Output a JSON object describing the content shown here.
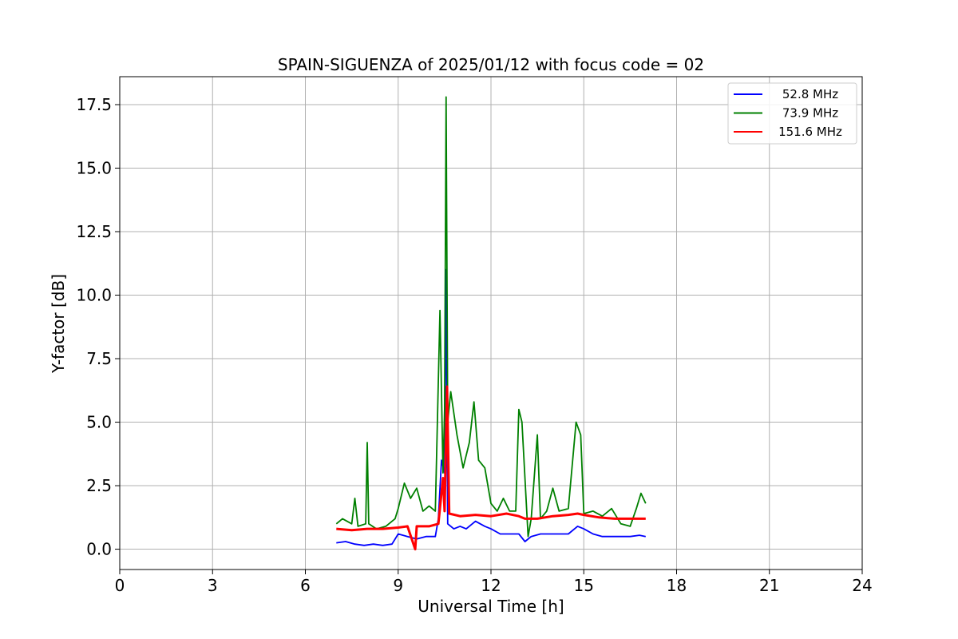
{
  "chart_data": {
    "type": "line",
    "title": "SPAIN-SIGUENZA of 2025/01/12 with focus code = 02",
    "xlabel": "Universal Time [h]",
    "ylabel": "Y-factor [dB]",
    "xlim": [
      0,
      24
    ],
    "ylim": [
      -0.8,
      18.6
    ],
    "xticks": [
      "0",
      "3",
      "6",
      "9",
      "12",
      "15",
      "18",
      "21",
      "24"
    ],
    "yticks": [
      "0.0",
      "2.5",
      "5.0",
      "7.5",
      "10.0",
      "12.5",
      "15.0",
      "17.5"
    ],
    "grid": true,
    "legend_position": "top-right",
    "series": [
      {
        "name": "52.8 MHz",
        "color": "#0000ff",
        "points": [
          [
            7.0,
            0.25
          ],
          [
            7.3,
            0.3
          ],
          [
            7.6,
            0.2
          ],
          [
            7.9,
            0.15
          ],
          [
            8.2,
            0.2
          ],
          [
            8.5,
            0.15
          ],
          [
            8.8,
            0.2
          ],
          [
            9.0,
            0.6
          ],
          [
            9.3,
            0.5
          ],
          [
            9.6,
            0.4
          ],
          [
            9.9,
            0.5
          ],
          [
            10.2,
            0.5
          ],
          [
            10.3,
            1.2
          ],
          [
            10.4,
            3.5
          ],
          [
            10.5,
            3.0
          ],
          [
            10.55,
            11.0
          ],
          [
            10.6,
            1.0
          ],
          [
            10.8,
            0.8
          ],
          [
            11.0,
            0.9
          ],
          [
            11.2,
            0.8
          ],
          [
            11.5,
            1.1
          ],
          [
            11.8,
            0.9
          ],
          [
            12.0,
            0.8
          ],
          [
            12.3,
            0.6
          ],
          [
            12.6,
            0.6
          ],
          [
            12.9,
            0.6
          ],
          [
            13.1,
            0.3
          ],
          [
            13.3,
            0.5
          ],
          [
            13.6,
            0.6
          ],
          [
            13.9,
            0.6
          ],
          [
            14.2,
            0.6
          ],
          [
            14.5,
            0.6
          ],
          [
            14.8,
            0.9
          ],
          [
            15.0,
            0.8
          ],
          [
            15.3,
            0.6
          ],
          [
            15.6,
            0.5
          ],
          [
            15.9,
            0.5
          ],
          [
            16.2,
            0.5
          ],
          [
            16.5,
            0.5
          ],
          [
            16.8,
            0.55
          ],
          [
            17.0,
            0.5
          ]
        ]
      },
      {
        "name": "73.9 MHz",
        "color": "#008000",
        "points": [
          [
            7.0,
            1.0
          ],
          [
            7.2,
            1.2
          ],
          [
            7.5,
            1.0
          ],
          [
            7.6,
            2.0
          ],
          [
            7.7,
            0.9
          ],
          [
            7.95,
            1.0
          ],
          [
            8.0,
            4.2
          ],
          [
            8.05,
            1.0
          ],
          [
            8.3,
            0.8
          ],
          [
            8.6,
            0.9
          ],
          [
            8.9,
            1.2
          ],
          [
            9.0,
            1.6
          ],
          [
            9.2,
            2.6
          ],
          [
            9.4,
            2.0
          ],
          [
            9.6,
            2.4
          ],
          [
            9.8,
            1.5
          ],
          [
            10.0,
            1.7
          ],
          [
            10.2,
            1.5
          ],
          [
            10.35,
            9.4
          ],
          [
            10.45,
            3.0
          ],
          [
            10.5,
            5.5
          ],
          [
            10.55,
            17.8
          ],
          [
            10.6,
            5.0
          ],
          [
            10.7,
            6.2
          ],
          [
            10.9,
            4.5
          ],
          [
            11.1,
            3.2
          ],
          [
            11.3,
            4.2
          ],
          [
            11.45,
            5.8
          ],
          [
            11.6,
            3.5
          ],
          [
            11.8,
            3.2
          ],
          [
            12.0,
            1.8
          ],
          [
            12.2,
            1.5
          ],
          [
            12.4,
            2.0
          ],
          [
            12.6,
            1.5
          ],
          [
            12.8,
            1.5
          ],
          [
            12.9,
            5.5
          ],
          [
            13.0,
            5.0
          ],
          [
            13.2,
            0.5
          ],
          [
            13.3,
            1.2
          ],
          [
            13.5,
            4.5
          ],
          [
            13.6,
            1.2
          ],
          [
            13.8,
            1.5
          ],
          [
            14.0,
            2.4
          ],
          [
            14.2,
            1.5
          ],
          [
            14.5,
            1.6
          ],
          [
            14.75,
            5.0
          ],
          [
            14.9,
            4.5
          ],
          [
            15.0,
            1.4
          ],
          [
            15.3,
            1.5
          ],
          [
            15.6,
            1.3
          ],
          [
            15.9,
            1.6
          ],
          [
            16.2,
            1.0
          ],
          [
            16.5,
            0.9
          ],
          [
            16.7,
            1.6
          ],
          [
            16.85,
            2.2
          ],
          [
            17.0,
            1.8
          ]
        ]
      },
      {
        "name": "151.6 MHz",
        "color": "#ff0000",
        "points": [
          [
            7.0,
            0.8
          ],
          [
            7.5,
            0.75
          ],
          [
            8.0,
            0.8
          ],
          [
            8.5,
            0.8
          ],
          [
            9.0,
            0.85
          ],
          [
            9.3,
            0.9
          ],
          [
            9.55,
            0.0
          ],
          [
            9.6,
            0.9
          ],
          [
            10.0,
            0.9
          ],
          [
            10.3,
            1.0
          ],
          [
            10.45,
            2.8
          ],
          [
            10.5,
            1.5
          ],
          [
            10.58,
            6.4
          ],
          [
            10.65,
            1.4
          ],
          [
            11.0,
            1.3
          ],
          [
            11.5,
            1.35
          ],
          [
            12.0,
            1.3
          ],
          [
            12.5,
            1.4
          ],
          [
            12.9,
            1.3
          ],
          [
            13.1,
            1.2
          ],
          [
            13.5,
            1.2
          ],
          [
            14.0,
            1.3
          ],
          [
            14.5,
            1.35
          ],
          [
            14.8,
            1.4
          ],
          [
            15.0,
            1.35
          ],
          [
            15.5,
            1.25
          ],
          [
            16.0,
            1.2
          ],
          [
            16.5,
            1.2
          ],
          [
            17.0,
            1.2
          ]
        ]
      }
    ]
  }
}
